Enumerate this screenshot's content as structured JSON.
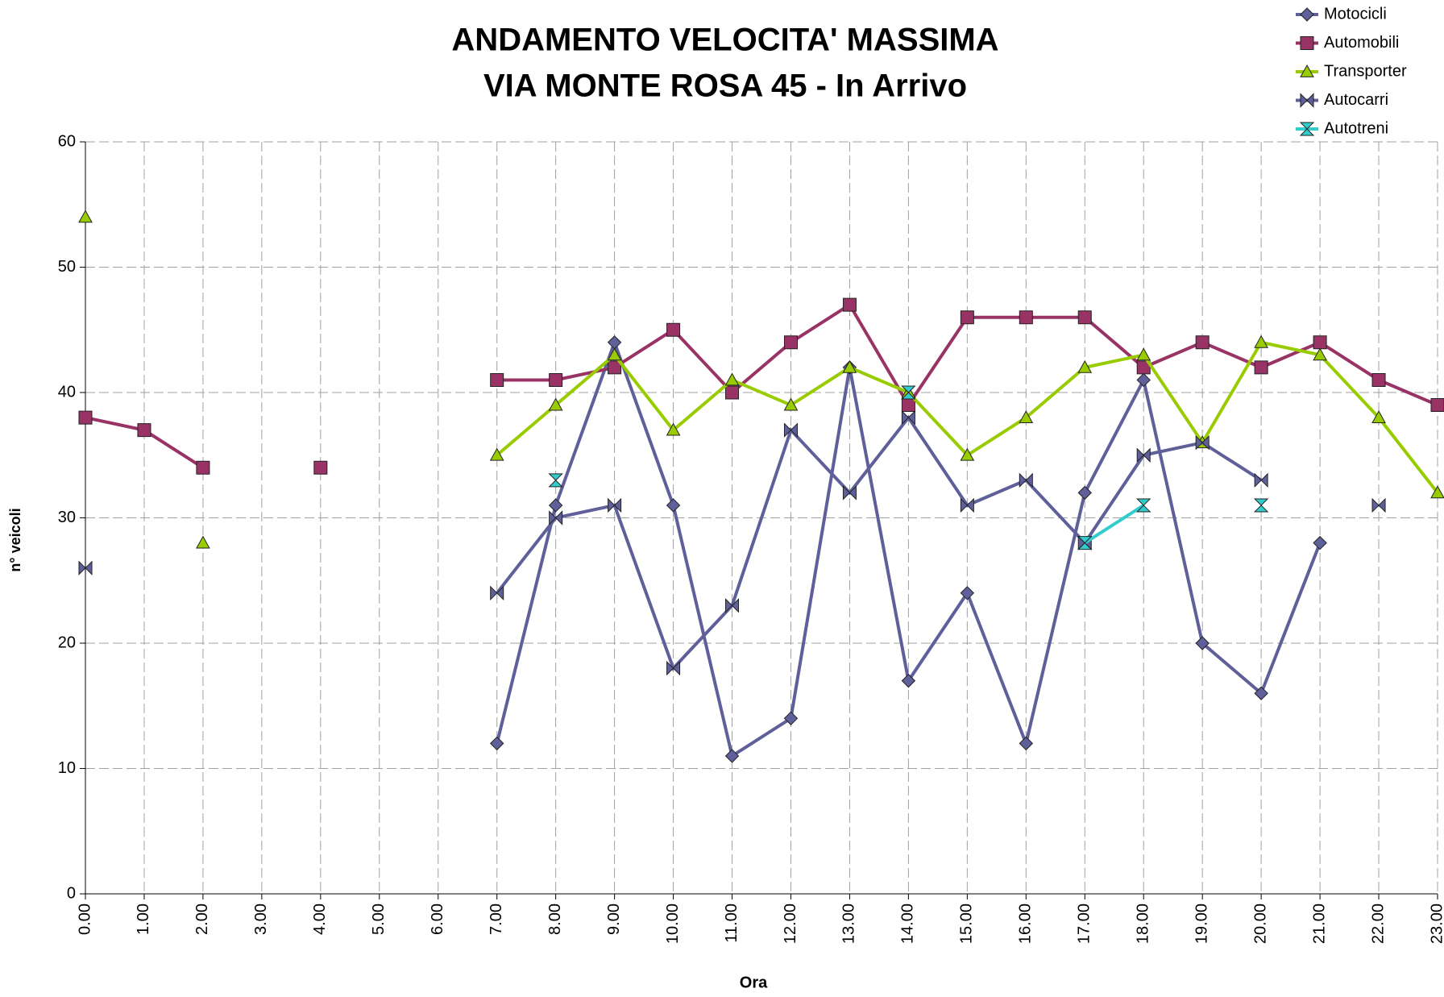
{
  "chart_data": {
    "type": "line",
    "title": [
      "ANDAMENTO VELOCITA' MASSIMA",
      "VIA MONTE  ROSA 45 - In Arrivo"
    ],
    "x_label": "Ora",
    "y_label": "n° veicoli",
    "categories": [
      "0.00",
      "1.00",
      "2.00",
      "3.00",
      "4.00",
      "5.00",
      "6.00",
      "7.00",
      "8.00",
      "9.00",
      "10.00",
      "11.00",
      "12.00",
      "13.00",
      "14.00",
      "15.00",
      "16.00",
      "17.00",
      "18.00",
      "19.00",
      "20.00",
      "21.00",
      "22.00",
      "23.00"
    ],
    "ylim": [
      0,
      60
    ],
    "yticks": [
      0,
      10,
      20,
      30,
      40,
      50,
      60
    ],
    "grid": true,
    "legend": "top-right",
    "series": [
      {
        "name": "Motocicli",
        "color": "#5f5f9a",
        "marker": "diamond",
        "values": [
          null,
          null,
          null,
          null,
          null,
          null,
          null,
          12,
          31,
          44,
          31,
          11,
          14,
          42,
          17,
          24,
          12,
          32,
          41,
          20,
          16,
          28,
          null,
          null
        ]
      },
      {
        "name": "Automobili",
        "color": "#993366",
        "marker": "square",
        "values": [
          38,
          37,
          34,
          null,
          34,
          null,
          null,
          41,
          41,
          42,
          45,
          40,
          44,
          47,
          39,
          46,
          46,
          46,
          42,
          44,
          42,
          44,
          41,
          39
        ]
      },
      {
        "name": "Transporter",
        "color": "#99cc00",
        "marker": "triangle",
        "values": [
          54,
          null,
          28,
          null,
          null,
          null,
          null,
          35,
          39,
          43,
          37,
          41,
          39,
          42,
          40,
          35,
          38,
          42,
          43,
          36,
          44,
          43,
          38,
          32
        ]
      },
      {
        "name": "Autocarri",
        "color": "#5f5f9a",
        "marker": "bowtie",
        "values": [
          26,
          null,
          null,
          null,
          null,
          null,
          null,
          24,
          30,
          31,
          18,
          23,
          37,
          32,
          38,
          31,
          33,
          28,
          35,
          36,
          33,
          null,
          31,
          null
        ]
      },
      {
        "name": "Autotreni",
        "color": "#33cccc",
        "marker": "hourglass",
        "values": [
          null,
          null,
          null,
          null,
          null,
          null,
          null,
          null,
          33,
          null,
          null,
          null,
          null,
          null,
          40,
          null,
          null,
          28,
          31,
          null,
          31,
          null,
          null,
          null
        ]
      }
    ]
  }
}
